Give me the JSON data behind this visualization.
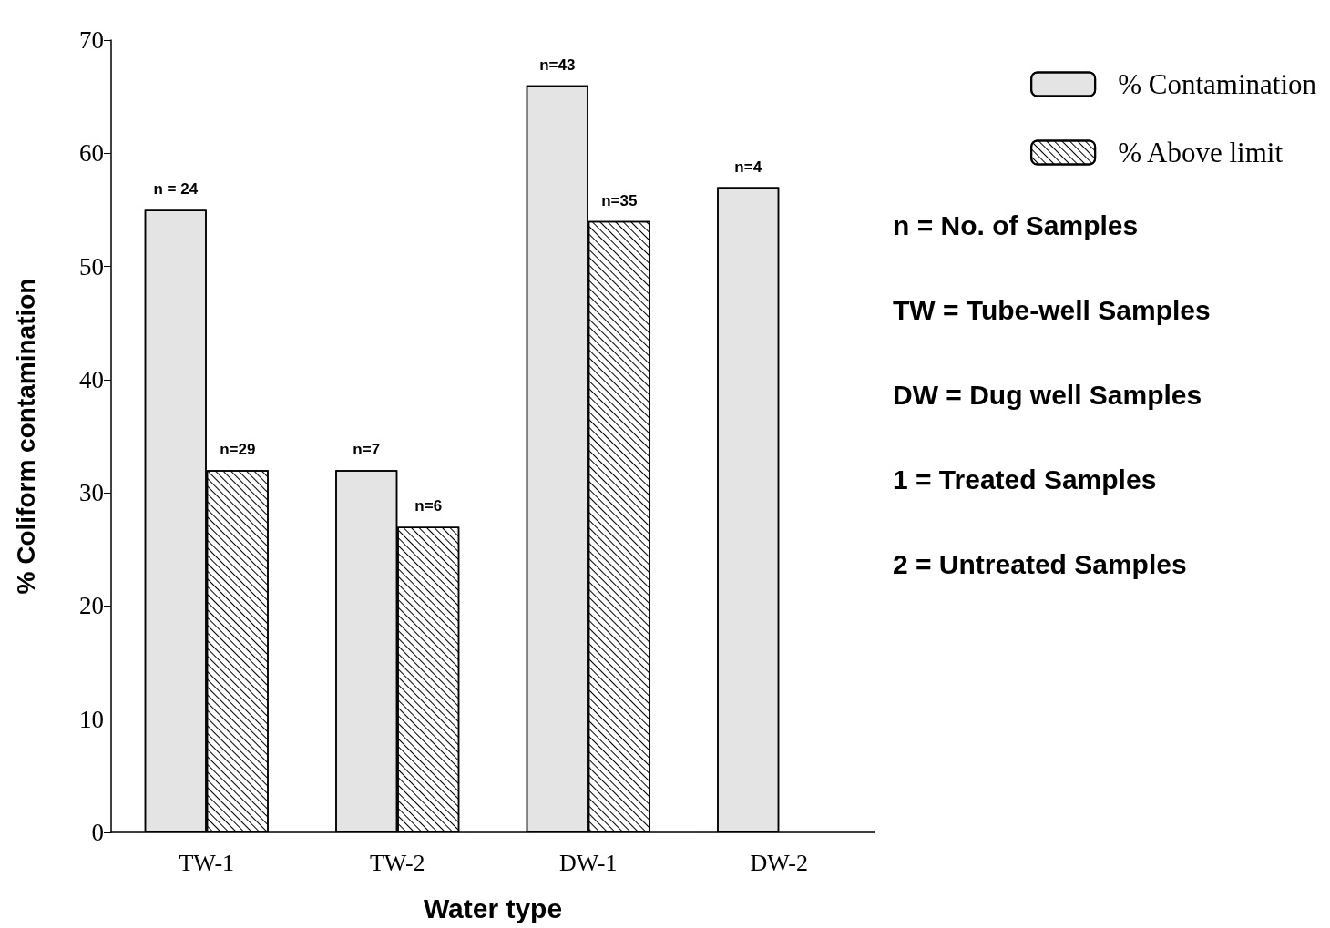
{
  "chart_data": {
    "type": "bar",
    "xlabel": "Water type",
    "ylabel": "% Coliform contamination",
    "categories": [
      "TW-1",
      "TW-2",
      "DW-1",
      "DW-2"
    ],
    "series": [
      {
        "name": "% Contamination",
        "color": "#e4e4e4",
        "values": [
          55,
          32,
          66,
          57
        ]
      },
      {
        "name": "% Above limit",
        "color": "#ffffff",
        "values": [
          32,
          27,
          54,
          null
        ]
      }
    ],
    "ylim": [
      0,
      70
    ],
    "yticks": [
      0,
      10,
      20,
      30,
      40,
      50,
      60,
      70
    ],
    "grid": false,
    "legend": "top right",
    "annotations": [
      {
        "text": "n = 24",
        "x": "TW-1",
        "y": 55
      },
      {
        "text": "n=29",
        "x": "TW-1",
        "y": 32
      },
      {
        "text": "n=7",
        "x": "TW-2",
        "y": 32
      },
      {
        "text": "n=6",
        "x": "TW-2",
        "y": 27
      },
      {
        "text": "n=43",
        "x": "DW-1",
        "y": 66
      },
      {
        "text": "n=35",
        "x": "DW-1",
        "y": 54
      },
      {
        "text": "n=4",
        "x": "DW-2",
        "y": 57
      },
      "n = No. of Samples",
      "TW = Tube-well Samples",
      "DW = Dug well Samples",
      "1 = Treated Samples",
      "2 = Untreated Samples"
    ]
  }
}
